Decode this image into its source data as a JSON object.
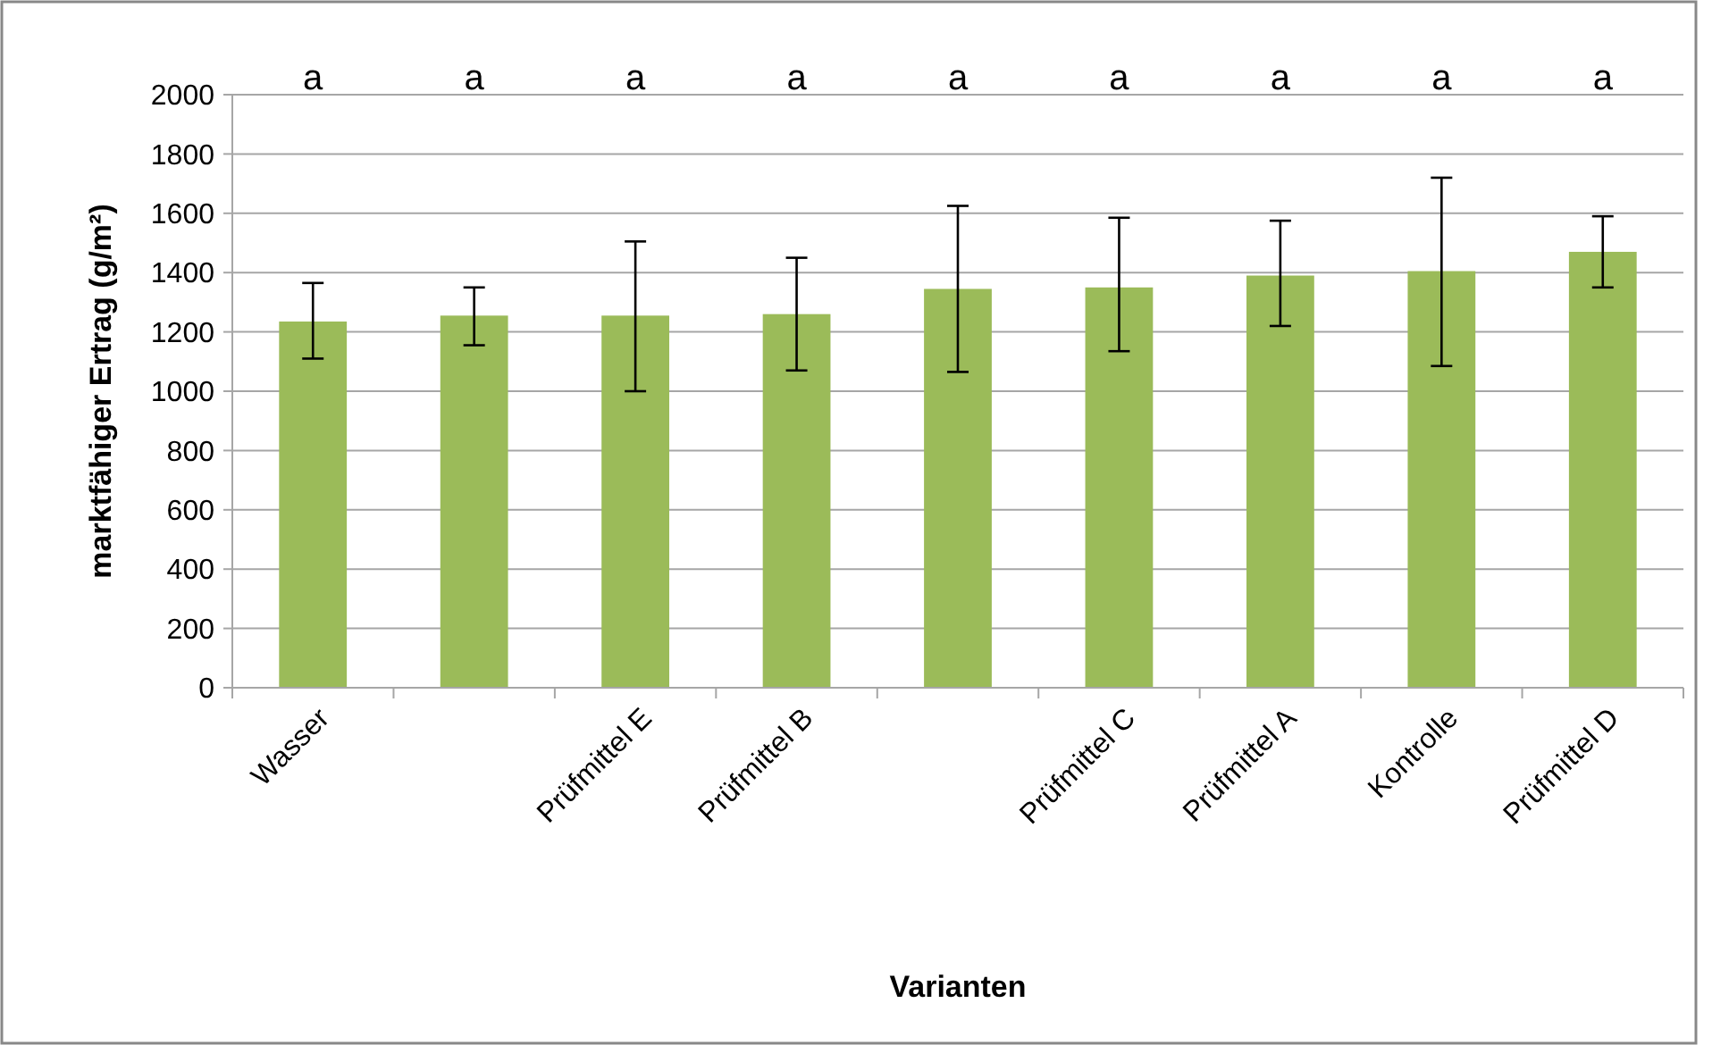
{
  "chart_data": {
    "type": "bar",
    "xlabel": "Varianten",
    "ylabel": "marktfähiger Ertrag (g/m²)",
    "categories": [
      "Wasser",
      null,
      "Prüfmittel E",
      "Prüfmittel B",
      null,
      "Prüfmittel C",
      "Prüfmittel A",
      "Kontrolle",
      "Prüfmittel D"
    ],
    "values": [
      1235,
      1255,
      1255,
      1260,
      1345,
      1350,
      1390,
      1405,
      1470
    ],
    "errors": [
      [
        1110,
        1365
      ],
      [
        1155,
        1350
      ],
      [
        1000,
        1505
      ],
      [
        1070,
        1450
      ],
      [
        1065,
        1625
      ],
      [
        1135,
        1585
      ],
      [
        1220,
        1575
      ],
      [
        1085,
        1720
      ],
      [
        1350,
        1590
      ]
    ],
    "color": "#9bbb59",
    "ylim": [
      0,
      2000
    ],
    "yticks": [
      0,
      200,
      400,
      600,
      800,
      1000,
      1200,
      1400,
      1600,
      1800,
      2000
    ],
    "grid": "y",
    "annotations": [
      "a",
      "a",
      "a",
      "a",
      "a",
      "a",
      "a",
      "a",
      "a"
    ]
  }
}
